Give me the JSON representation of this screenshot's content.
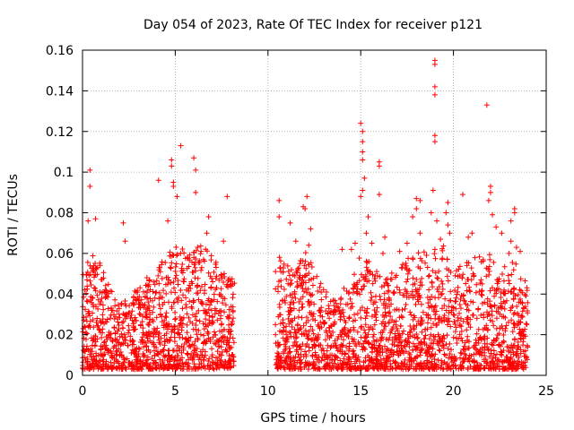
{
  "chart_data": {
    "type": "scatter",
    "title": "Day 054 of 2023, Rate Of TEC Index for receiver p121",
    "xlabel": "GPS time / hours",
    "ylabel": "ROTI / TECUs",
    "xlim": [
      0,
      25
    ],
    "ylim": [
      0,
      0.16
    ],
    "x_ticks": [
      "0",
      "5",
      "10",
      "15",
      "20",
      "25"
    ],
    "y_ticks": [
      "0",
      "0.02",
      "0.04",
      "0.06",
      "0.08",
      "0.1",
      "0.12",
      "0.14",
      "0.16"
    ],
    "grid": true,
    "marker": "+",
    "color": "#ff0000",
    "data_gap_hours": [
      8.2,
      10.4
    ],
    "x_range_observed": [
      0,
      24.0
    ],
    "highlighted_points": [
      {
        "x": 0.4,
        "y": 0.101
      },
      {
        "x": 0.4,
        "y": 0.093
      },
      {
        "x": 0.7,
        "y": 0.077
      },
      {
        "x": 0.3,
        "y": 0.076
      },
      {
        "x": 2.2,
        "y": 0.075
      },
      {
        "x": 2.3,
        "y": 0.066
      },
      {
        "x": 4.1,
        "y": 0.096
      },
      {
        "x": 4.8,
        "y": 0.106
      },
      {
        "x": 4.8,
        "y": 0.103
      },
      {
        "x": 4.9,
        "y": 0.095
      },
      {
        "x": 4.9,
        "y": 0.093
      },
      {
        "x": 5.3,
        "y": 0.113
      },
      {
        "x": 5.1,
        "y": 0.088
      },
      {
        "x": 4.6,
        "y": 0.076
      },
      {
        "x": 6.0,
        "y": 0.107
      },
      {
        "x": 6.1,
        "y": 0.101
      },
      {
        "x": 6.1,
        "y": 0.09
      },
      {
        "x": 6.8,
        "y": 0.078
      },
      {
        "x": 6.7,
        "y": 0.07
      },
      {
        "x": 7.8,
        "y": 0.088
      },
      {
        "x": 7.6,
        "y": 0.066
      },
      {
        "x": 10.6,
        "y": 0.086
      },
      {
        "x": 10.6,
        "y": 0.078
      },
      {
        "x": 11.2,
        "y": 0.075
      },
      {
        "x": 11.5,
        "y": 0.066
      },
      {
        "x": 12.1,
        "y": 0.088
      },
      {
        "x": 12.0,
        "y": 0.082
      },
      {
        "x": 11.9,
        "y": 0.083
      },
      {
        "x": 12.3,
        "y": 0.072
      },
      {
        "x": 12.2,
        "y": 0.064
      },
      {
        "x": 14.0,
        "y": 0.062
      },
      {
        "x": 14.5,
        "y": 0.062
      },
      {
        "x": 14.7,
        "y": 0.065
      },
      {
        "x": 15.0,
        "y": 0.124
      },
      {
        "x": 15.1,
        "y": 0.12
      },
      {
        "x": 15.1,
        "y": 0.115
      },
      {
        "x": 15.1,
        "y": 0.11
      },
      {
        "x": 15.1,
        "y": 0.106
      },
      {
        "x": 15.2,
        "y": 0.097
      },
      {
        "x": 15.1,
        "y": 0.091
      },
      {
        "x": 15.0,
        "y": 0.088
      },
      {
        "x": 15.4,
        "y": 0.078
      },
      {
        "x": 15.3,
        "y": 0.07
      },
      {
        "x": 15.6,
        "y": 0.065
      },
      {
        "x": 16.0,
        "y": 0.105
      },
      {
        "x": 16.0,
        "y": 0.103
      },
      {
        "x": 16.0,
        "y": 0.089
      },
      {
        "x": 16.3,
        "y": 0.068
      },
      {
        "x": 16.2,
        "y": 0.06
      },
      {
        "x": 17.1,
        "y": 0.061
      },
      {
        "x": 17.5,
        "y": 0.065
      },
      {
        "x": 17.8,
        "y": 0.078
      },
      {
        "x": 18.0,
        "y": 0.087
      },
      {
        "x": 18.2,
        "y": 0.086
      },
      {
        "x": 18.0,
        "y": 0.082
      },
      {
        "x": 18.2,
        "y": 0.07
      },
      {
        "x": 19.0,
        "y": 0.155
      },
      {
        "x": 19.0,
        "y": 0.153
      },
      {
        "x": 19.0,
        "y": 0.142
      },
      {
        "x": 19.0,
        "y": 0.138
      },
      {
        "x": 19.0,
        "y": 0.118
      },
      {
        "x": 19.0,
        "y": 0.115
      },
      {
        "x": 18.9,
        "y": 0.091
      },
      {
        "x": 18.8,
        "y": 0.08
      },
      {
        "x": 19.1,
        "y": 0.076
      },
      {
        "x": 19.3,
        "y": 0.067
      },
      {
        "x": 19.0,
        "y": 0.062
      },
      {
        "x": 19.7,
        "y": 0.085
      },
      {
        "x": 19.6,
        "y": 0.08
      },
      {
        "x": 19.7,
        "y": 0.074
      },
      {
        "x": 19.8,
        "y": 0.07
      },
      {
        "x": 20.5,
        "y": 0.089
      },
      {
        "x": 20.8,
        "y": 0.068
      },
      {
        "x": 21.0,
        "y": 0.07
      },
      {
        "x": 21.8,
        "y": 0.133
      },
      {
        "x": 22.0,
        "y": 0.093
      },
      {
        "x": 22.0,
        "y": 0.09
      },
      {
        "x": 21.9,
        "y": 0.086
      },
      {
        "x": 22.1,
        "y": 0.079
      },
      {
        "x": 22.3,
        "y": 0.073
      },
      {
        "x": 22.6,
        "y": 0.07
      },
      {
        "x": 23.3,
        "y": 0.082
      },
      {
        "x": 23.3,
        "y": 0.08
      },
      {
        "x": 23.1,
        "y": 0.076
      },
      {
        "x": 23.1,
        "y": 0.066
      },
      {
        "x": 23.4,
        "y": 0.063
      },
      {
        "x": 23.6,
        "y": 0.061
      },
      {
        "x": 23.0,
        "y": 0.06
      }
    ],
    "envelope": [
      {
        "x": 0.0,
        "y": 0.048
      },
      {
        "x": 0.5,
        "y": 0.058
      },
      {
        "x": 1.0,
        "y": 0.053
      },
      {
        "x": 1.5,
        "y": 0.04
      },
      {
        "x": 2.0,
        "y": 0.032
      },
      {
        "x": 2.5,
        "y": 0.036
      },
      {
        "x": 3.0,
        "y": 0.04
      },
      {
        "x": 3.5,
        "y": 0.046
      },
      {
        "x": 4.0,
        "y": 0.05
      },
      {
        "x": 4.5,
        "y": 0.055
      },
      {
        "x": 5.0,
        "y": 0.062
      },
      {
        "x": 5.5,
        "y": 0.06
      },
      {
        "x": 6.0,
        "y": 0.058
      },
      {
        "x": 6.5,
        "y": 0.063
      },
      {
        "x": 7.0,
        "y": 0.057
      },
      {
        "x": 7.5,
        "y": 0.05
      },
      {
        "x": 8.1,
        "y": 0.045
      },
      {
        "x": 10.5,
        "y": 0.058
      },
      {
        "x": 11.0,
        "y": 0.052
      },
      {
        "x": 11.5,
        "y": 0.048
      },
      {
        "x": 12.0,
        "y": 0.062
      },
      {
        "x": 12.5,
        "y": 0.05
      },
      {
        "x": 13.0,
        "y": 0.04
      },
      {
        "x": 13.5,
        "y": 0.036
      },
      {
        "x": 14.0,
        "y": 0.04
      },
      {
        "x": 14.5,
        "y": 0.042
      },
      {
        "x": 15.0,
        "y": 0.06
      },
      {
        "x": 15.5,
        "y": 0.052
      },
      {
        "x": 16.0,
        "y": 0.055
      },
      {
        "x": 16.5,
        "y": 0.048
      },
      {
        "x": 17.0,
        "y": 0.05
      },
      {
        "x": 17.5,
        "y": 0.054
      },
      {
        "x": 18.0,
        "y": 0.062
      },
      {
        "x": 18.5,
        "y": 0.058
      },
      {
        "x": 19.0,
        "y": 0.06
      },
      {
        "x": 19.5,
        "y": 0.062
      },
      {
        "x": 20.0,
        "y": 0.05
      },
      {
        "x": 20.5,
        "y": 0.052
      },
      {
        "x": 21.0,
        "y": 0.058
      },
      {
        "x": 21.5,
        "y": 0.055
      },
      {
        "x": 22.0,
        "y": 0.06
      },
      {
        "x": 22.5,
        "y": 0.05
      },
      {
        "x": 23.0,
        "y": 0.052
      },
      {
        "x": 23.5,
        "y": 0.054
      },
      {
        "x": 24.0,
        "y": 0.04
      }
    ]
  }
}
